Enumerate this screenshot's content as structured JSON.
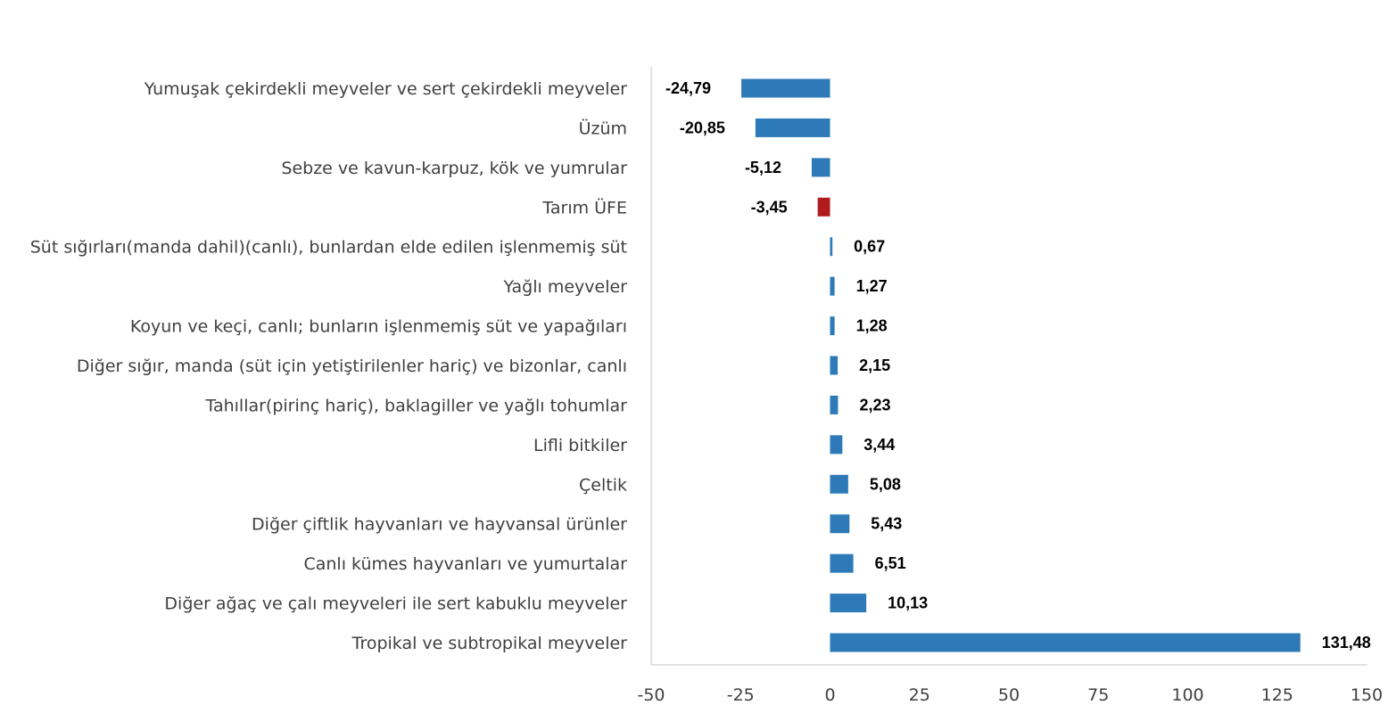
{
  "chart_data": {
    "type": "bar",
    "orientation": "horizontal",
    "title": "",
    "xlabel": "",
    "ylabel": "",
    "xlim": [
      -50,
      150
    ],
    "xticks": [
      "-50",
      "-25",
      "0",
      "25",
      "50",
      "75",
      "100",
      "125",
      "150"
    ],
    "grid": false,
    "categories": [
      "Yumuşak çekirdekli meyveler ve sert çekirdekli meyveler",
      "Üzüm",
      "Sebze ve kavun-karpuz, kök ve yumrular",
      "Tarım ÜFE",
      "Süt sığırları(manda dahil)(canlı), bunlardan elde edilen işlenmemiş süt",
      "Yağlı meyveler",
      "Koyun ve keçi, canlı; bunların işlenmemiş süt ve yapağıları",
      "Diğer sığır, manda (süt için yetiştirilenler hariç) ve bizonlar, canlı",
      "Tahıllar(pirinç hariç), baklagiller ve yağlı tohumlar",
      "Lifli bitkiler",
      "Çeltik",
      "Diğer çiftlik hayvanları ve hayvansal ürünler",
      "Canlı kümes hayvanları ve yumurtalar",
      "Diğer ağaç ve çalı meyveleri ile sert kabuklu meyveler",
      "Tropikal ve subtropikal meyveler"
    ],
    "values": [
      -24.79,
      -20.85,
      -5.12,
      -3.45,
      0.67,
      1.27,
      1.28,
      2.15,
      2.23,
      3.44,
      5.08,
      5.43,
      6.51,
      10.13,
      131.48
    ],
    "labels": [
      "-24,79",
      "-20,85",
      "-5,12",
      "-3,45",
      "0,67",
      "1,27",
      "1,28",
      "2,15",
      "2,23",
      "3,44",
      "5,08",
      "5,43",
      "6,51",
      "10,13",
      "131,48"
    ],
    "highlight_index": 3,
    "colors": {
      "bar": "#2e7ab8",
      "highlight": "#b01c1c",
      "axis": "#d9d9d9"
    }
  }
}
